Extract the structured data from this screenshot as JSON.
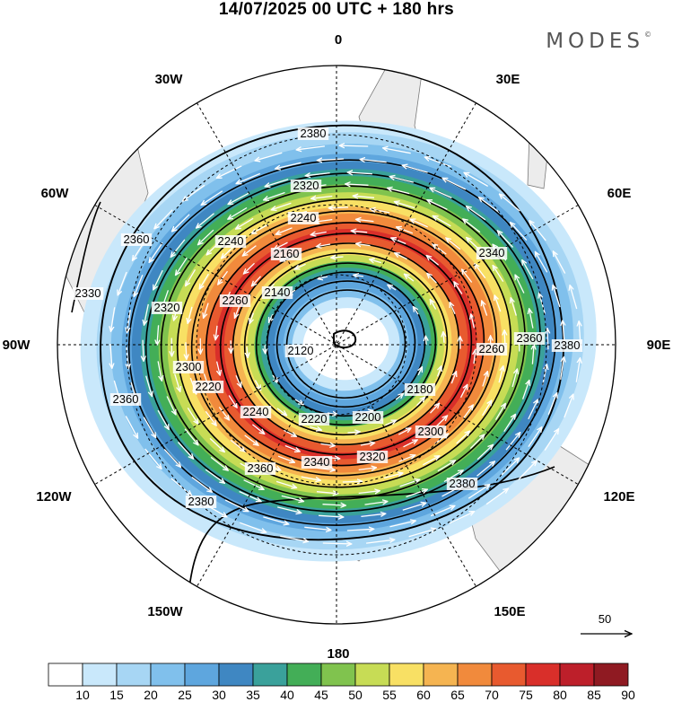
{
  "title": "14/07/2025  00 UTC  + 180 hrs",
  "brand": "MODES",
  "brand_mark": "©",
  "longitude_labels": {
    "0": "0",
    "30E": "30E",
    "60E": "60E",
    "90E": "90E",
    "120E": "120E",
    "150E": "150E",
    "180": "180",
    "150W": "150W",
    "120W": "120W",
    "90W": "90W",
    "60W": "60W",
    "30W": "30W"
  },
  "contour_labels": [
    "2380",
    "2320",
    "2240",
    "2360",
    "2330",
    "2320",
    "2240",
    "2260",
    "2160",
    "2140",
    "2120",
    "2300",
    "2220",
    "2240",
    "2220",
    "2200",
    "2180",
    "2300",
    "2320",
    "2340",
    "2360",
    "2340",
    "2260",
    "2360",
    "2380",
    "2380",
    "2360",
    "2380"
  ],
  "vector_reference": {
    "label": "50"
  },
  "colorbar": {
    "levels": [
      "10",
      "15",
      "20",
      "25",
      "30",
      "35",
      "40",
      "45",
      "50",
      "55",
      "60",
      "65",
      "70",
      "75",
      "80",
      "85",
      "90"
    ],
    "colors": [
      "#ffffff",
      "#c9e8fb",
      "#a7d6f4",
      "#80c0ec",
      "#5ea6de",
      "#3f87c2",
      "#3aa19b",
      "#43ae57",
      "#80c34e",
      "#c7dc55",
      "#f8e064",
      "#f5b451",
      "#f18a3c",
      "#e85a2f",
      "#d92f2a",
      "#bd1f2a",
      "#8f1a22"
    ]
  }
}
